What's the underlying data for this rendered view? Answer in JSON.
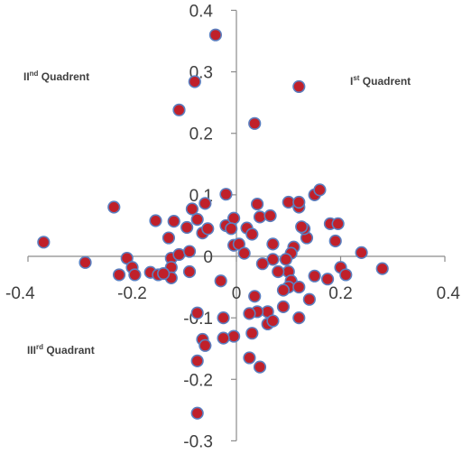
{
  "chart_data": {
    "type": "scatter",
    "title": "",
    "xlabel": "",
    "ylabel": "",
    "xlim": [
      -0.4,
      0.4
    ],
    "ylim": [
      -0.3,
      0.4
    ],
    "x_ticks": [
      {
        "value": -0.4,
        "label": "-0.4"
      },
      {
        "value": -0.2,
        "label": "-0.2"
      },
      {
        "value": 0,
        "label": "0"
      },
      {
        "value": 0.2,
        "label": "0.2"
      },
      {
        "value": 0.4,
        "label": "0.4"
      }
    ],
    "y_ticks": [
      {
        "value": 0.4,
        "label": "0.4"
      },
      {
        "value": 0.3,
        "label": "0.3"
      },
      {
        "value": 0.2,
        "label": "0.2"
      },
      {
        "value": 0.1,
        "label": "0.1"
      },
      {
        "value": 0,
        "label": "0"
      },
      {
        "value": -0.1,
        "label": "-0.1"
      },
      {
        "value": -0.2,
        "label": "-0.2"
      },
      {
        "value": -0.3,
        "label": "-0.3"
      }
    ],
    "grid": false,
    "marker_fill": "#c0202a",
    "marker_edge": "#5b7fc0",
    "annotations": [
      {
        "base": "II",
        "sup": "nd",
        "rest": " Quadrent",
        "quadrant": "top-left"
      },
      {
        "base": "I",
        "sup": "st",
        "rest": " Quadrent",
        "quadrant": "top-right"
      },
      {
        "base": "III",
        "sup": "rd",
        "rest": " Quadrant",
        "quadrant": "bottom-left"
      }
    ],
    "series": [
      {
        "points": [
          [
            -0.04,
            0.36
          ],
          [
            0.12,
            0.276
          ],
          [
            -0.08,
            0.284
          ],
          [
            -0.11,
            0.238
          ],
          [
            0.035,
            0.216
          ],
          [
            -0.235,
            0.08
          ],
          [
            -0.37,
            0.023
          ],
          [
            -0.29,
            -0.01
          ],
          [
            -0.155,
            0.058
          ],
          [
            -0.12,
            0.057
          ],
          [
            -0.13,
            0.03
          ],
          [
            -0.21,
            -0.003
          ],
          [
            -0.2,
            -0.018
          ],
          [
            -0.195,
            -0.03
          ],
          [
            -0.225,
            -0.03
          ],
          [
            -0.165,
            -0.026
          ],
          [
            -0.15,
            -0.03
          ],
          [
            -0.125,
            -0.003
          ],
          [
            -0.125,
            -0.018
          ],
          [
            -0.125,
            -0.035
          ],
          [
            -0.14,
            -0.028
          ],
          [
            -0.11,
            0.003
          ],
          [
            -0.09,
            0.008
          ],
          [
            -0.085,
            0.077
          ],
          [
            -0.075,
            0.06
          ],
          [
            -0.095,
            0.047
          ],
          [
            -0.065,
            0.038
          ],
          [
            -0.055,
            0.045
          ],
          [
            -0.06,
            0.086
          ],
          [
            -0.02,
            0.101
          ],
          [
            -0.02,
            0.05
          ],
          [
            -0.005,
            0.062
          ],
          [
            -0.01,
            0.045
          ],
          [
            -0.005,
            0.018
          ],
          [
            0.005,
            0.02
          ],
          [
            0.015,
            0.005
          ],
          [
            0.02,
            0.046
          ],
          [
            0.03,
            0.036
          ],
          [
            0.04,
            0.085
          ],
          [
            0.045,
            0.064
          ],
          [
            0.065,
            0.066
          ],
          [
            0.07,
            0.02
          ],
          [
            0.07,
            -0.005
          ],
          [
            0.05,
            -0.012
          ],
          [
            -0.09,
            -0.025
          ],
          [
            -0.03,
            -0.04
          ],
          [
            0.1,
            0.088
          ],
          [
            0.12,
            0.08
          ],
          [
            0.12,
            0.088
          ],
          [
            0.15,
            0.1
          ],
          [
            0.16,
            0.108
          ],
          [
            0.18,
            0.053
          ],
          [
            0.195,
            0.053
          ],
          [
            0.19,
            0.025
          ],
          [
            0.24,
            0.006
          ],
          [
            0.28,
            -0.02
          ],
          [
            0.2,
            -0.018
          ],
          [
            0.21,
            -0.03
          ],
          [
            0.175,
            -0.037
          ],
          [
            0.15,
            -0.032
          ],
          [
            0.135,
            0.03
          ],
          [
            0.13,
            0.045
          ],
          [
            0.125,
            0.048
          ],
          [
            0.11,
            0.015
          ],
          [
            0.105,
            0.005
          ],
          [
            0.095,
            -0.005
          ],
          [
            0.1,
            -0.025
          ],
          [
            0.105,
            -0.04
          ],
          [
            0.1,
            -0.05
          ],
          [
            0.12,
            -0.05
          ],
          [
            0.14,
            -0.07
          ],
          [
            0.08,
            -0.025
          ],
          [
            0.09,
            -0.055
          ],
          [
            0.06,
            -0.09
          ],
          [
            0.06,
            -0.11
          ],
          [
            0.04,
            -0.09
          ],
          [
            0.025,
            -0.093
          ],
          [
            0.035,
            -0.065
          ],
          [
            0.07,
            -0.105
          ],
          [
            0.12,
            -0.1
          ],
          [
            0.09,
            -0.082
          ],
          [
            0.03,
            -0.125
          ],
          [
            0.025,
            -0.165
          ],
          [
            0.045,
            -0.18
          ],
          [
            -0.005,
            -0.13
          ],
          [
            -0.025,
            -0.133
          ],
          [
            -0.025,
            -0.1
          ],
          [
            -0.075,
            -0.092
          ],
          [
            -0.065,
            -0.135
          ],
          [
            -0.06,
            -0.145
          ],
          [
            -0.075,
            -0.17
          ],
          [
            -0.075,
            -0.255
          ]
        ]
      }
    ]
  }
}
